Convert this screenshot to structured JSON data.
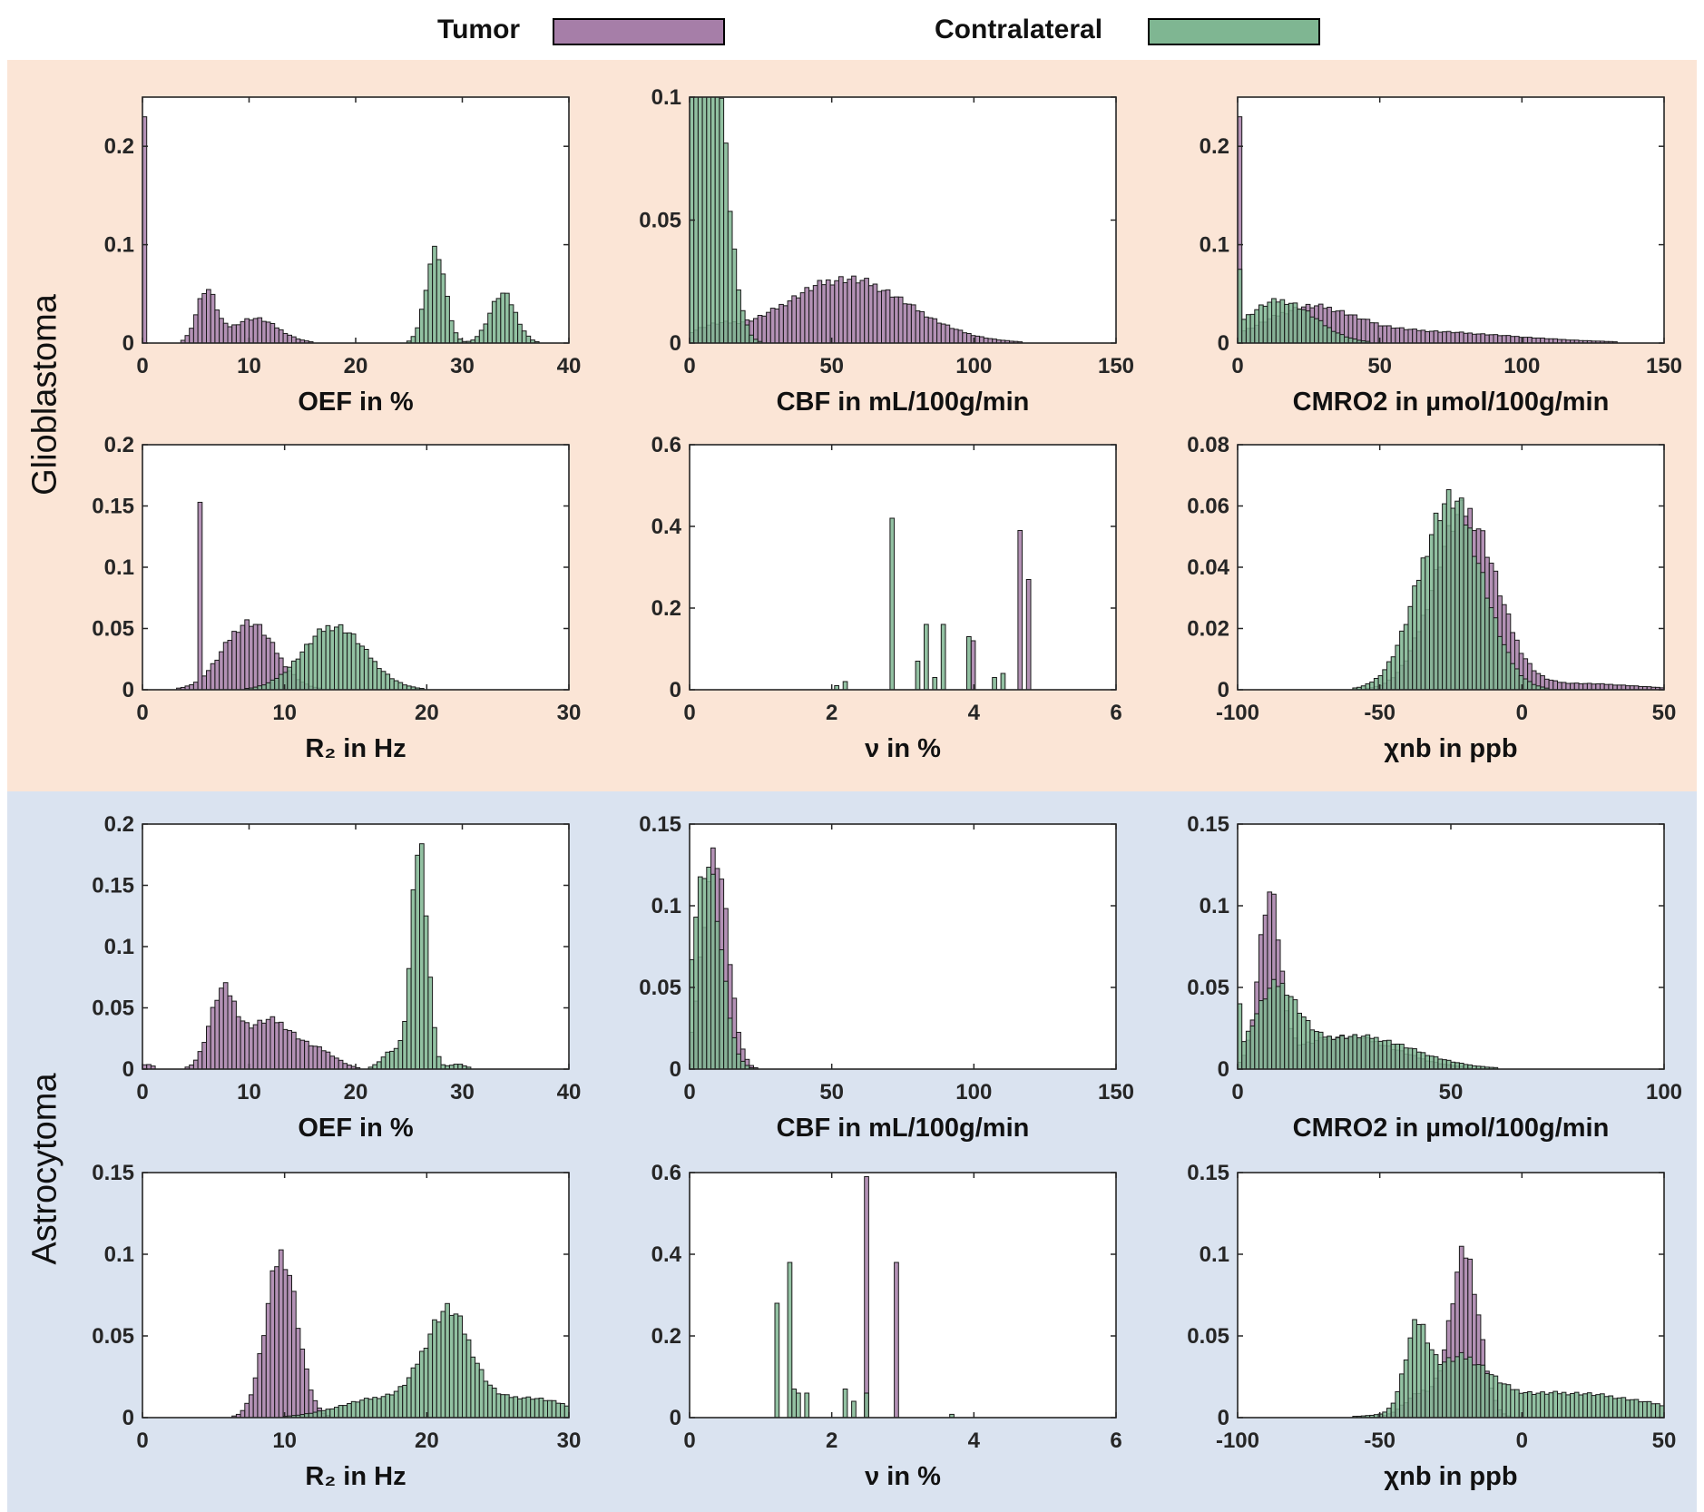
{
  "legend": {
    "tumor": {
      "label": "Tumor",
      "color": "#a67ea8"
    },
    "contralateral": {
      "label": "Contralateral",
      "color": "#7fb692"
    }
  },
  "groups": {
    "glioblastoma": "Glioblastoma",
    "astrocytoma": "Astrocytoma"
  },
  "chart_data": [
    {
      "type": "bar",
      "group": "Glioblastoma",
      "title": "",
      "xlabel": "OEF in %",
      "ylabel": "",
      "xlim": [
        0,
        40
      ],
      "ylim": [
        0,
        0.25
      ],
      "xticks": [
        0,
        10,
        20,
        30,
        40
      ],
      "yticks": [
        0,
        0.1,
        0.2
      ],
      "xtick_labels": [
        "0",
        "10",
        "20",
        "30",
        "40"
      ],
      "ytick_labels": [
        "0",
        "0.1",
        "0.2"
      ],
      "series": [
        {
          "name": "Tumor",
          "peaks": [
            [
              0,
              0.23,
              0.12
            ],
            [
              6,
              0.052,
              0.9
            ],
            [
              10.5,
              0.025,
              2.2
            ]
          ],
          "spikes": [
            [
              0.1,
              0.23
            ]
          ]
        },
        {
          "name": "Contralateral",
          "peaks": [
            [
              27.5,
              0.095,
              0.9
            ],
            [
              33.8,
              0.05,
              1.2
            ]
          ]
        }
      ]
    },
    {
      "type": "bar",
      "group": "Glioblastoma",
      "title": "",
      "xlabel": "CBF in mL/100g/min",
      "ylabel": "",
      "xlim": [
        0,
        150
      ],
      "ylim": [
        0,
        0.1
      ],
      "xticks": [
        0,
        50,
        100,
        150
      ],
      "yticks": [
        0,
        0.05,
        0.1
      ],
      "xtick_labels": [
        "0",
        "50",
        "100",
        "150"
      ],
      "ytick_labels": [
        "0",
        "0.05",
        "0.1"
      ],
      "series": [
        {
          "name": "Tumor",
          "peaks": [
            [
              55,
              0.026,
              22
            ],
            [
              8,
              0.005,
              8
            ]
          ]
        },
        {
          "name": "Contralateral",
          "peaks": [
            [
              3,
              0.1,
              4.5
            ],
            [
              9,
              0.088,
              5
            ]
          ]
        }
      ]
    },
    {
      "type": "bar",
      "group": "Glioblastoma",
      "title": "",
      "xlabel": "CMRO2 in µmol/100g/min",
      "ylabel": "",
      "xlim": [
        0,
        150
      ],
      "ylim": [
        0,
        0.25
      ],
      "xticks": [
        0,
        50,
        100,
        150
      ],
      "yticks": [
        0,
        0.1,
        0.2
      ],
      "xtick_labels": [
        "0",
        "50",
        "100",
        "150"
      ],
      "ytick_labels": [
        "0",
        "0.1",
        "0.2"
      ],
      "series": [
        {
          "name": "Tumor",
          "peaks": [
            [
              25,
              0.03,
              15
            ],
            [
              60,
              0.012,
              35
            ]
          ],
          "spikes": [
            [
              0.5,
              0.23
            ]
          ]
        },
        {
          "name": "Contralateral",
          "peaks": [
            [
              15,
              0.043,
              12
            ]
          ],
          "spikes": [
            [
              0.5,
              0.075
            ]
          ]
        }
      ]
    },
    {
      "type": "bar",
      "group": "Glioblastoma",
      "title": "",
      "xlabel": "R₂ in Hz",
      "ylabel": "",
      "xlim": [
        0,
        30
      ],
      "ylim": [
        0,
        0.2
      ],
      "xticks": [
        0,
        10,
        20,
        30
      ],
      "yticks": [
        0,
        0.05,
        0.1,
        0.15,
        0.2
      ],
      "xtick_labels": [
        "0",
        "10",
        "20",
        "30"
      ],
      "ytick_labels": [
        "0",
        "0.05",
        "0.1",
        "0.15",
        "0.2"
      ],
      "series": [
        {
          "name": "Tumor",
          "peaks": [
            [
              7.5,
              0.055,
              1.8
            ]
          ],
          "spikes": [
            [
              4.1,
              0.153
            ]
          ]
        },
        {
          "name": "Contralateral",
          "peaks": [
            [
              13.5,
              0.052,
              2.2
            ]
          ]
        }
      ]
    },
    {
      "type": "bar",
      "group": "Glioblastoma",
      "title": "",
      "xlabel": "ν in %",
      "ylabel": "",
      "xlim": [
        0,
        6
      ],
      "ylim": [
        0,
        0.6
      ],
      "xticks": [
        0,
        2,
        4,
        6
      ],
      "yticks": [
        0,
        0.2,
        0.4,
        0.6
      ],
      "xtick_labels": [
        "0",
        "2",
        "4",
        "6"
      ],
      "ytick_labels": [
        "0",
        "0.2",
        "0.4",
        "0.6"
      ],
      "series": [
        {
          "name": "Tumor",
          "spikes": [
            [
              4.65,
              0.39
            ],
            [
              4.78,
              0.27
            ],
            [
              4.0,
              0.12
            ]
          ]
        },
        {
          "name": "Contralateral",
          "spikes": [
            [
              2.83,
              0.42
            ],
            [
              3.2,
              0.07
            ],
            [
              3.35,
              0.16
            ],
            [
              3.55,
              0.16
            ],
            [
              3.95,
              0.13
            ],
            [
              4.3,
              0.03
            ],
            [
              4.38,
              0.04
            ],
            [
              2.05,
              0.01
            ],
            [
              2.18,
              0.02
            ],
            [
              3.45,
              0.03
            ]
          ]
        }
      ]
    },
    {
      "type": "bar",
      "group": "Glioblastoma",
      "title": "",
      "xlabel": "χnb in ppb",
      "ylabel": "",
      "xlim": [
        -100,
        50
      ],
      "ylim": [
        0,
        0.08
      ],
      "xticks": [
        -100,
        -50,
        0,
        50
      ],
      "yticks": [
        0,
        0.02,
        0.04,
        0.06,
        0.08
      ],
      "xtick_labels": [
        "-100",
        "-50",
        "0",
        "50"
      ],
      "ytick_labels": [
        "0",
        "0.02",
        "0.04",
        "0.06",
        "0.08"
      ],
      "series": [
        {
          "name": "Tumor",
          "peaks": [
            [
              -20,
              0.058,
              11
            ],
            [
              20,
              0.002,
              20
            ]
          ]
        },
        {
          "name": "Contralateral",
          "peaks": [
            [
              -25,
              0.062,
              11
            ]
          ]
        }
      ]
    },
    {
      "type": "bar",
      "group": "Astrocytoma",
      "title": "",
      "xlabel": "OEF in %",
      "ylabel": "",
      "xlim": [
        0,
        40
      ],
      "ylim": [
        0,
        0.2
      ],
      "xticks": [
        0,
        10,
        20,
        30,
        40
      ],
      "yticks": [
        0,
        0.05,
        0.1,
        0.15,
        0.2
      ],
      "xtick_labels": [
        "0",
        "10",
        "20",
        "30",
        "40"
      ],
      "ytick_labels": [
        "0",
        "0.05",
        "0.1",
        "0.15",
        "0.2"
      ],
      "series": [
        {
          "name": "Tumor",
          "peaks": [
            [
              7.5,
              0.058,
              1.2
            ],
            [
              12,
              0.04,
              2.5
            ],
            [
              17,
              0.01,
              1.5
            ],
            [
              0.4,
              0.004,
              0.6
            ]
          ]
        },
        {
          "name": "Contralateral",
          "peaks": [
            [
              26,
              0.185,
              0.75
            ],
            [
              23.5,
              0.015,
              1
            ],
            [
              29.5,
              0.004,
              0.8
            ]
          ]
        }
      ]
    },
    {
      "type": "bar",
      "group": "Astrocytoma",
      "title": "",
      "xlabel": "CBF in mL/100g/min",
      "ylabel": "",
      "xlim": [
        0,
        150
      ],
      "ylim": [
        0,
        0.15
      ],
      "xticks": [
        0,
        50,
        100,
        150
      ],
      "yticks": [
        0,
        0.05,
        0.1,
        0.15
      ],
      "xtick_labels": [
        "0",
        "50",
        "100",
        "150"
      ],
      "ytick_labels": [
        "0",
        "0.05",
        "0.1",
        "0.15"
      ],
      "series": [
        {
          "name": "Tumor",
          "peaks": [
            [
              9,
              0.13,
              4.5
            ]
          ]
        },
        {
          "name": "Contralateral",
          "peaks": [
            [
              6,
              0.125,
              5
            ]
          ]
        }
      ]
    },
    {
      "type": "bar",
      "group": "Astrocytoma",
      "title": "",
      "xlabel": "CMRO2 in µmol/100g/min",
      "ylabel": "",
      "xlim": [
        0,
        100
      ],
      "ylim": [
        0,
        0.15
      ],
      "xticks": [
        0,
        50,
        100
      ],
      "yticks": [
        0,
        0.05,
        0.1,
        0.15
      ],
      "xtick_labels": [
        "0",
        "50",
        "100"
      ],
      "ytick_labels": [
        "0",
        "0.05",
        "0.1",
        "0.15"
      ],
      "series": [
        {
          "name": "Tumor",
          "peaks": [
            [
              7.5,
              0.1,
              2.5
            ],
            [
              25,
              0.02,
              12
            ]
          ]
        },
        {
          "name": "Contralateral",
          "peaks": [
            [
              9,
              0.045,
              5
            ],
            [
              28,
              0.02,
              13
            ]
          ],
          "spikes": [
            [
              0.5,
              0.04
            ]
          ]
        }
      ]
    },
    {
      "type": "bar",
      "group": "Astrocytoma",
      "title": "",
      "xlabel": "R₂ in Hz",
      "ylabel": "",
      "xlim": [
        0,
        30
      ],
      "ylim": [
        0,
        0.15
      ],
      "xticks": [
        0,
        10,
        20,
        30
      ],
      "yticks": [
        0,
        0.05,
        0.1,
        0.15
      ],
      "xtick_labels": [
        "0",
        "10",
        "20",
        "30"
      ],
      "ytick_labels": [
        "0",
        "0.05",
        "0.1",
        "0.15"
      ],
      "series": [
        {
          "name": "Tumor",
          "peaks": [
            [
              9.8,
              0.1,
              1.1
            ]
          ]
        },
        {
          "name": "Contralateral",
          "peaks": [
            [
              21.5,
              0.06,
              1.6
            ],
            [
              17,
              0.012,
              3
            ],
            [
              27,
              0.012,
              3
            ]
          ]
        }
      ]
    },
    {
      "type": "bar",
      "group": "Astrocytoma",
      "title": "",
      "xlabel": "ν in %",
      "ylabel": "",
      "xlim": [
        0,
        6
      ],
      "ylim": [
        0,
        0.6
      ],
      "xticks": [
        0,
        2,
        4,
        6
      ],
      "yticks": [
        0,
        0.2,
        0.4,
        0.6
      ],
      "xtick_labels": [
        "0",
        "2",
        "4",
        "6"
      ],
      "ytick_labels": [
        "0",
        "0.2",
        "0.4",
        "0.6"
      ],
      "series": [
        {
          "name": "Tumor",
          "spikes": [
            [
              2.48,
              0.59
            ],
            [
              2.93,
              0.38
            ]
          ]
        },
        {
          "name": "Contralateral",
          "spikes": [
            [
              1.25,
              0.28
            ],
            [
              1.38,
              0.38
            ],
            [
              1.48,
              0.07
            ],
            [
              1.55,
              0.06
            ],
            [
              1.65,
              0.06
            ],
            [
              2.18,
              0.07
            ],
            [
              2.33,
              0.04
            ],
            [
              2.47,
              0.06
            ],
            [
              3.68,
              0.008
            ]
          ]
        }
      ]
    },
    {
      "type": "bar",
      "group": "Astrocytoma",
      "title": "",
      "xlabel": "χnb in ppb",
      "ylabel": "",
      "xlim": [
        -100,
        50
      ],
      "ylim": [
        0,
        0.15
      ],
      "xticks": [
        -100,
        -50,
        0,
        50
      ],
      "yticks": [
        0,
        0.05,
        0.1,
        0.15
      ],
      "xtick_labels": [
        "-100",
        "-50",
        "0",
        "50"
      ],
      "ytick_labels": [
        "0",
        "0.05",
        "0.1",
        "0.15"
      ],
      "series": [
        {
          "name": "Tumor",
          "peaks": [
            [
              -20,
              0.1,
              5
            ],
            [
              -35,
              0.015,
              6
            ]
          ]
        },
        {
          "name": "Contralateral",
          "peaks": [
            [
              -37,
              0.045,
              4
            ],
            [
              -22,
              0.03,
              10
            ],
            [
              15,
              0.015,
              30
            ]
          ]
        }
      ]
    }
  ]
}
